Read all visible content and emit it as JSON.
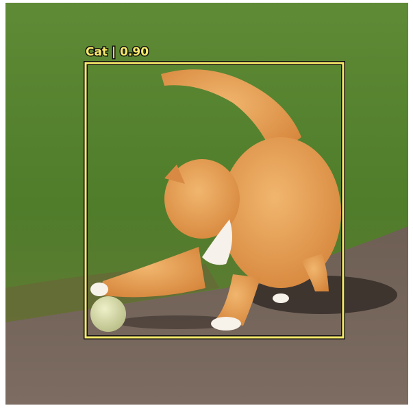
{
  "detection": {
    "label": "Cat | 0.90"
  }
}
